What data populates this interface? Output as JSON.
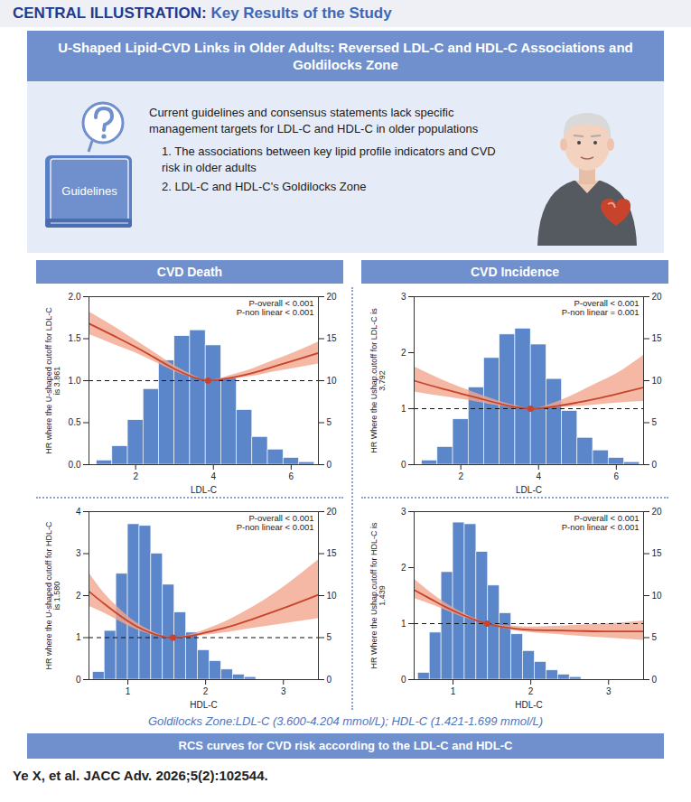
{
  "header": {
    "label": "CENTRAL ILLUSTRATION:",
    "title": "Key Results of the Study"
  },
  "banner": "U-Shaped Lipid-CVD Links in Older Adults: Reversed LDL-C and HDL-C Associations and Goldilocks Zone",
  "intro": {
    "icon_label": "Guidelines",
    "statement": "Current guidelines and consensus statements lack specific management targets for LDL-C and HDL-C in older populations",
    "items": [
      "1. The associations between key lipid profile indicators and CVD risk in older adults",
      "2. LDL-C and HDL-C's Goldilocks Zone"
    ]
  },
  "panels": [
    "CVD Death",
    "CVD Incidence"
  ],
  "chart_data": [
    {
      "type": "line",
      "xlabel": "LDL-C",
      "ylabel": "HR where the U-shaped cutoff for LDL-C is 3.861",
      "xlim": [
        0.8,
        6.7
      ],
      "xticks": [
        2,
        4,
        6
      ],
      "ylim": [
        0,
        2
      ],
      "yticks": [
        {
          "value": 0,
          "label": "0.0"
        },
        {
          "value": 0.5,
          "label": "0.5"
        },
        {
          "value": 1,
          "label": "1.0"
        },
        {
          "value": 1.5,
          "label": "1.5"
        },
        {
          "value": 2,
          "label": "2.0"
        }
      ],
      "y2lim": [
        0,
        20
      ],
      "y2ticks": [
        0,
        5,
        10,
        15,
        20
      ],
      "annotations": [
        "P-overall < 0.001",
        "P-non linear < 0.001"
      ],
      "reference_line": 1,
      "cutoff": {
        "x": 3.861,
        "y": 1
      },
      "series": [
        {
          "type": "line",
          "color": "#c8432b",
          "x": [
            0.8,
            1.5,
            2.0,
            2.5,
            3.0,
            3.5,
            3.861,
            4.5,
            5.0,
            5.5,
            6.0,
            6.7
          ],
          "values": [
            1.68,
            1.52,
            1.4,
            1.27,
            1.14,
            1.04,
            1.0,
            1.04,
            1.09,
            1.16,
            1.23,
            1.33
          ],
          "lower": [
            1.55,
            1.42,
            1.33,
            1.22,
            1.11,
            1.03,
            1.0,
            1.02,
            1.05,
            1.1,
            1.14,
            1.2
          ],
          "upper": [
            1.82,
            1.63,
            1.48,
            1.33,
            1.18,
            1.06,
            1.0,
            1.07,
            1.14,
            1.23,
            1.32,
            1.46
          ]
        },
        {
          "type": "bar",
          "axis": "y2",
          "color": "#5b86c9",
          "bins": [
            1.0,
            1.4,
            1.8,
            2.2,
            2.6,
            3.0,
            3.4,
            3.8,
            4.2,
            4.6,
            5.0,
            5.4,
            5.8,
            6.2,
            6.6
          ],
          "values": [
            0.5,
            2.2,
            5.3,
            9.0,
            12.4,
            15.3,
            16.0,
            14.2,
            10.3,
            6.5,
            3.3,
            1.8,
            0.8,
            0.3
          ]
        }
      ]
    },
    {
      "type": "line",
      "xlabel": "LDL-C",
      "ylabel": "HR Where the Ushap.cutoff for LDL-C is 3.792",
      "xlim": [
        0.8,
        6.7
      ],
      "xticks": [
        2,
        4,
        6
      ],
      "ylim": [
        0,
        3
      ],
      "yticks": [
        0,
        1,
        2,
        3
      ],
      "y2lim": [
        0,
        20
      ],
      "y2ticks": [
        0,
        5,
        10,
        15,
        20
      ],
      "annotations": [
        "P-overall < 0.001",
        "P-non linear = 0.001"
      ],
      "reference_line": 1,
      "cutoff": {
        "x": 3.792,
        "y": 1
      },
      "series": [
        {
          "type": "line",
          "color": "#c8432b",
          "x": [
            0.8,
            1.5,
            2.0,
            2.5,
            3.0,
            3.5,
            3.792,
            4.5,
            5.0,
            5.5,
            6.0,
            6.7
          ],
          "values": [
            1.5,
            1.36,
            1.27,
            1.18,
            1.09,
            1.02,
            1.0,
            1.05,
            1.11,
            1.18,
            1.26,
            1.38
          ],
          "lower": [
            1.3,
            1.22,
            1.17,
            1.11,
            1.05,
            1.01,
            1.0,
            1.02,
            1.04,
            1.07,
            1.1,
            1.13
          ],
          "upper": [
            1.75,
            1.52,
            1.38,
            1.25,
            1.13,
            1.04,
            1.0,
            1.13,
            1.28,
            1.45,
            1.62,
            1.95
          ]
        },
        {
          "type": "bar",
          "axis": "y2",
          "color": "#5b86c9",
          "bins": [
            1.0,
            1.4,
            1.8,
            2.2,
            2.6,
            3.0,
            3.4,
            3.8,
            4.2,
            4.6,
            5.0,
            5.4,
            5.8,
            6.2,
            6.6
          ],
          "values": [
            0.5,
            2.1,
            5.4,
            9.2,
            12.7,
            15.5,
            16.2,
            14.3,
            10.2,
            6.4,
            3.2,
            1.7,
            0.8,
            0.3
          ]
        }
      ]
    },
    {
      "type": "line",
      "xlabel": "HDL-C",
      "ylabel": "HR where the U-shaped cutoff for HDL-C is 1.580",
      "xlim": [
        0.5,
        3.45
      ],
      "xticks": [
        1,
        2,
        3
      ],
      "ylim": [
        0,
        4
      ],
      "yticks": [
        0,
        1,
        2,
        3,
        4
      ],
      "y2lim": [
        0,
        20
      ],
      "y2ticks": [
        0,
        5,
        10,
        15,
        20
      ],
      "annotations": [
        "P-overall < 0.001",
        "P-non linear < 0.001"
      ],
      "reference_line": 1,
      "cutoff": {
        "x": 1.58,
        "y": 1
      },
      "series": [
        {
          "type": "line",
          "color": "#c8432b",
          "x": [
            0.5,
            0.7,
            0.9,
            1.1,
            1.3,
            1.5,
            1.58,
            1.8,
            2.0,
            2.3,
            2.6,
            3.0,
            3.45
          ],
          "values": [
            2.1,
            1.8,
            1.52,
            1.28,
            1.11,
            1.01,
            1.0,
            1.04,
            1.12,
            1.26,
            1.44,
            1.7,
            2.02
          ],
          "lower": [
            1.75,
            1.58,
            1.38,
            1.2,
            1.07,
            1.0,
            1.0,
            1.02,
            1.06,
            1.13,
            1.22,
            1.33,
            1.45
          ],
          "upper": [
            2.55,
            2.05,
            1.68,
            1.37,
            1.16,
            1.02,
            1.0,
            1.07,
            1.19,
            1.42,
            1.72,
            2.2,
            2.85
          ]
        },
        {
          "type": "bar",
          "axis": "y2",
          "color": "#5b86c9",
          "bins": [
            0.55,
            0.7,
            0.85,
            1.0,
            1.15,
            1.3,
            1.45,
            1.6,
            1.75,
            1.9,
            2.05,
            2.2,
            2.35,
            2.5,
            2.65
          ],
          "values": [
            0.9,
            5.8,
            12.6,
            18.5,
            18.3,
            15.0,
            11.3,
            8.0,
            5.6,
            3.5,
            2.2,
            1.2,
            0.6,
            0.3
          ]
        }
      ]
    },
    {
      "type": "line",
      "xlabel": "HDL-C",
      "ylabel": "HR Where the Ushap.cutoff for HDL-C is 1.439",
      "xlim": [
        0.5,
        3.45
      ],
      "xticks": [
        1,
        2,
        3
      ],
      "ylim": [
        0,
        3
      ],
      "yticks": [
        0,
        1,
        2,
        3
      ],
      "y2lim": [
        0,
        20
      ],
      "y2ticks": [
        0,
        5,
        10,
        15,
        20
      ],
      "annotations": [
        "P-overall < 0.001",
        "P-non linear < 0.001"
      ],
      "reference_line": 1,
      "cutoff": {
        "x": 1.439,
        "y": 1
      },
      "series": [
        {
          "type": "line",
          "color": "#c8432b",
          "x": [
            0.5,
            0.7,
            0.9,
            1.1,
            1.3,
            1.439,
            1.6,
            1.8,
            2.0,
            2.3,
            2.6,
            3.0,
            3.45
          ],
          "values": [
            1.6,
            1.45,
            1.3,
            1.17,
            1.06,
            1.0,
            0.95,
            0.91,
            0.89,
            0.88,
            0.87,
            0.86,
            0.86
          ],
          "lower": [
            1.45,
            1.35,
            1.24,
            1.13,
            1.04,
            1.0,
            0.93,
            0.87,
            0.84,
            0.81,
            0.78,
            0.74,
            0.7
          ],
          "upper": [
            1.8,
            1.57,
            1.37,
            1.21,
            1.08,
            1.0,
            0.97,
            0.95,
            0.94,
            0.95,
            0.97,
            1.0,
            1.05
          ]
        },
        {
          "type": "bar",
          "axis": "y2",
          "color": "#5b86c9",
          "bins": [
            0.55,
            0.7,
            0.85,
            1.0,
            1.15,
            1.3,
            1.45,
            1.6,
            1.75,
            1.9,
            2.05,
            2.2,
            2.35,
            2.5,
            2.65
          ],
          "values": [
            0.8,
            5.6,
            12.8,
            18.7,
            18.5,
            15.2,
            11.2,
            7.9,
            5.4,
            3.4,
            2.1,
            1.1,
            0.6,
            0.3
          ]
        }
      ]
    }
  ],
  "goldilocks": "Goldilocks Zone:LDL-C (3.600-4.204 mmol/L); HDL-C (1.421-1.699 mmol/L)",
  "footer_bar": "RCS curves for CVD risk according to the LDL-C and HDL-C",
  "citation": "Ye X, et al. JACC Adv. 2026;5(2):102544."
}
